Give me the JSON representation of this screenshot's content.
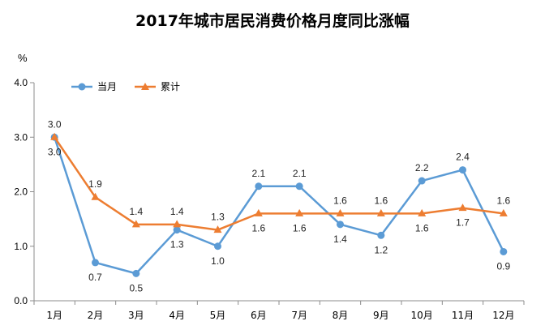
{
  "chart_data": {
    "type": "line",
    "title": "2017年城市居民消费价格月度同比涨幅",
    "unit": "%",
    "categories": [
      "1月",
      "2月",
      "3月",
      "4月",
      "5月",
      "6月",
      "7月",
      "8月",
      "9月",
      "10月",
      "11月",
      "12月"
    ],
    "series": [
      {
        "name": "当月",
        "color": "#5B9BD5",
        "marker": "circle",
        "values": [
          3.0,
          0.7,
          0.5,
          1.3,
          1.0,
          2.1,
          2.1,
          1.4,
          1.2,
          2.2,
          2.4,
          0.9
        ]
      },
      {
        "name": "累计",
        "color": "#ED7D31",
        "marker": "triangle",
        "values": [
          3.0,
          1.9,
          1.4,
          1.4,
          1.3,
          1.6,
          1.6,
          1.6,
          1.6,
          1.6,
          1.7,
          1.6
        ]
      }
    ],
    "ylim": [
      0.0,
      4.0
    ],
    "yticks": [
      "0.0",
      "1.0",
      "2.0",
      "3.0",
      "4.0"
    ],
    "legend_position": "top-left",
    "grid": false
  }
}
